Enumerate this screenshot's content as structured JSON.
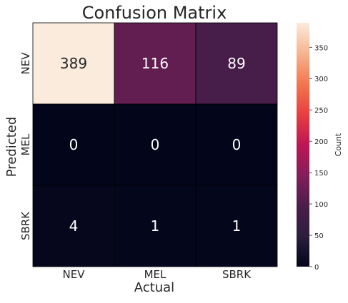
{
  "chart_data": {
    "type": "heatmap",
    "title": "Confusion Matrix",
    "xlabel": "Actual",
    "ylabel": "Predicted",
    "x_categories": [
      "NEV",
      "MEL",
      "SBRK"
    ],
    "y_categories": [
      "NEV",
      "MEL",
      "SBRK"
    ],
    "values": [
      [
        389,
        116,
        89
      ],
      [
        0,
        0,
        0
      ],
      [
        4,
        1,
        1
      ]
    ],
    "colorbar": {
      "label": "Count",
      "range": [
        0,
        389
      ],
      "ticks": [
        0,
        50,
        100,
        150,
        200,
        250,
        300,
        350
      ]
    },
    "grid_lines": true
  }
}
